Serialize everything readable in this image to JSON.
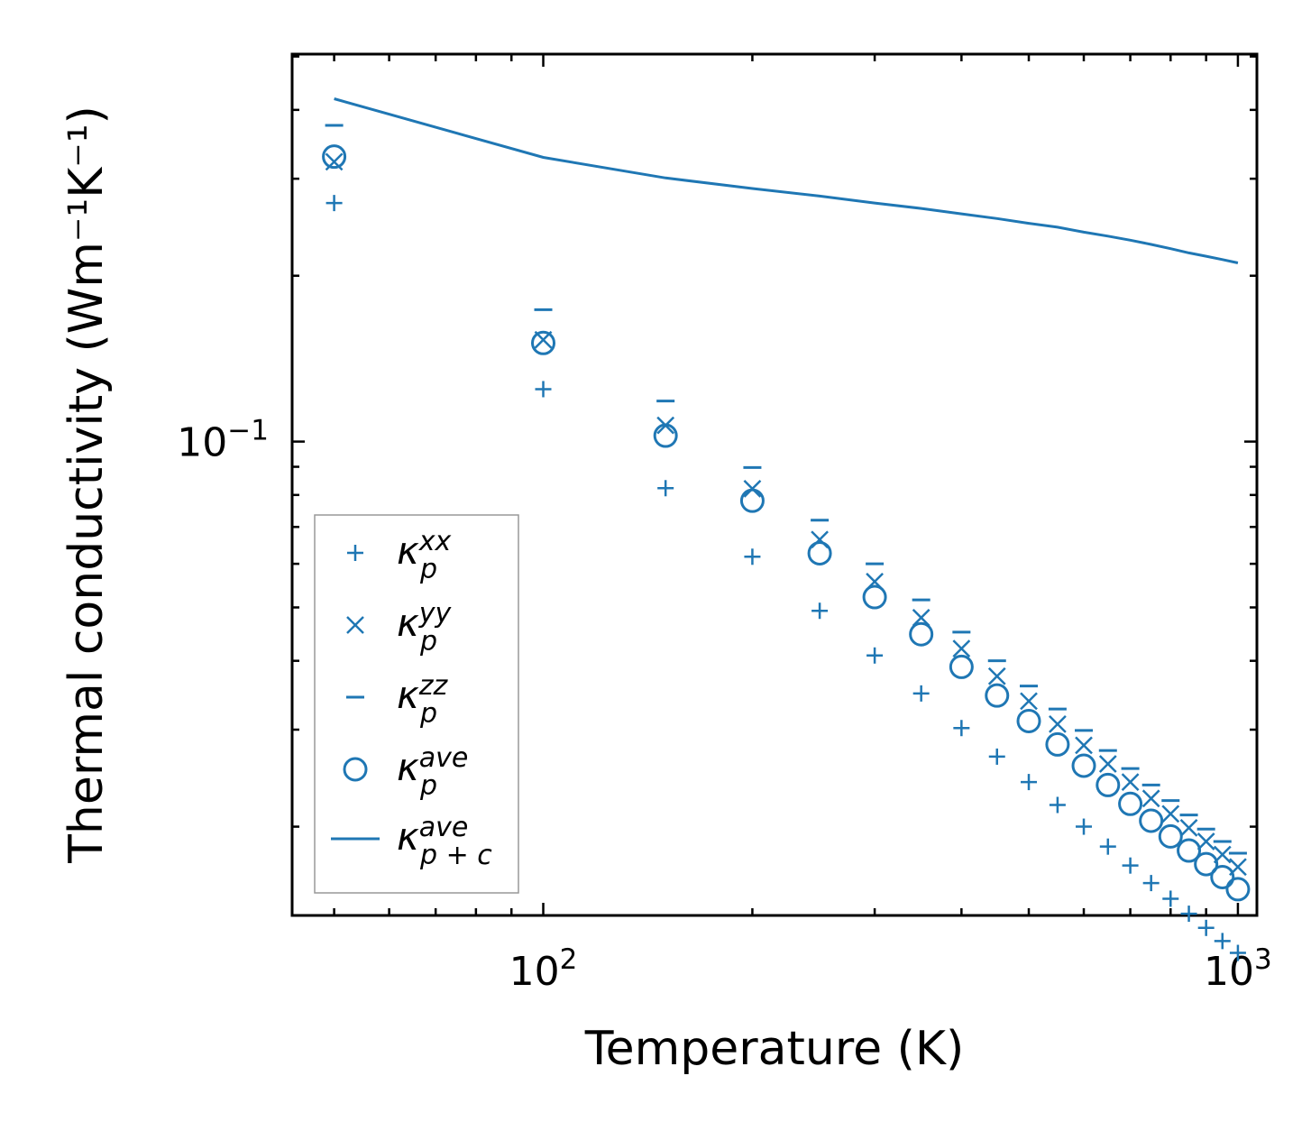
{
  "chart_data": {
    "type": "scatter",
    "title": "",
    "xlabel": "Temperature (K)",
    "ylabel": "Thermal conductivity (Wm⁻¹K⁻¹)",
    "xscale": "log",
    "yscale": "log",
    "xlim": [
      43.5,
      1065
    ],
    "ylim": [
      0.0138,
      0.505
    ],
    "grid": false,
    "legend_position": "lower-left",
    "x_major_ticks": [
      {
        "value": 100,
        "base": "10",
        "exp": "2"
      },
      {
        "value": 1000,
        "base": "10",
        "exp": "3"
      }
    ],
    "y_major_ticks": [
      {
        "value": 0.1,
        "base": "10",
        "exp": "−1"
      }
    ],
    "x": [
      50,
      100,
      150,
      200,
      250,
      300,
      350,
      400,
      450,
      500,
      550,
      600,
      650,
      700,
      750,
      800,
      850,
      900,
      950,
      1000
    ],
    "series": [
      {
        "name": "kappa_p_xx",
        "legend": {
          "base": "κ",
          "sub": "p",
          "sup": "xx"
        },
        "marker": "plus",
        "values": [
          0.271,
          0.1245,
          0.0823,
          0.0618,
          0.0493,
          0.0409,
          0.0349,
          0.0302,
          0.0268,
          0.0241,
          0.0219,
          0.02,
          0.0184,
          0.017,
          0.0158,
          0.0148,
          0.0139,
          0.0131,
          0.0124,
          0.0118
        ]
      },
      {
        "name": "kappa_p_yy",
        "legend": {
          "base": "κ",
          "sub": "p",
          "sup": "yy"
        },
        "marker": "x",
        "values": [
          0.322,
          0.153,
          0.107,
          0.0821,
          0.0664,
          0.0557,
          0.0479,
          0.0421,
          0.0375,
          0.0338,
          0.0307,
          0.0281,
          0.026,
          0.0241,
          0.0225,
          0.0211,
          0.0199,
          0.0188,
          0.0178,
          0.0169
        ]
      },
      {
        "name": "kappa_p_zz",
        "legend": {
          "base": "κ",
          "sub": "p",
          "sup": "zz"
        },
        "marker": "hline",
        "values": [
          0.375,
          0.1735,
          0.1185,
          0.0897,
          0.072,
          0.06,
          0.0516,
          0.0451,
          0.04,
          0.036,
          0.0327,
          0.0299,
          0.0275,
          0.0255,
          0.0238,
          0.0223,
          0.021,
          0.0198,
          0.0188,
          0.0179
        ]
      },
      {
        "name": "kappa_p_ave",
        "legend": {
          "base": "κ",
          "sub": "p",
          "sup": "ave"
        },
        "marker": "circle",
        "values": [
          0.329,
          0.151,
          0.1025,
          0.0781,
          0.0627,
          0.0522,
          0.0447,
          0.039,
          0.0346,
          0.0311,
          0.0282,
          0.0258,
          0.0238,
          0.022,
          0.0205,
          0.0192,
          0.0181,
          0.0171,
          0.0162,
          0.0154
        ]
      },
      {
        "name": "kappa_p+c_ave",
        "legend": {
          "base": "κ",
          "sub": "p + c",
          "sup": "ave"
        },
        "marker": "line",
        "values": [
          0.419,
          0.328,
          0.301,
          0.288,
          0.279,
          0.271,
          0.265,
          0.259,
          0.254,
          0.249,
          0.245,
          0.24,
          0.236,
          0.232,
          0.228,
          0.224,
          0.22,
          0.217,
          0.214,
          0.211
        ]
      }
    ]
  },
  "colors": {
    "series": "#1f77b4",
    "axis": "#000000",
    "legend_border": "#999999"
  }
}
